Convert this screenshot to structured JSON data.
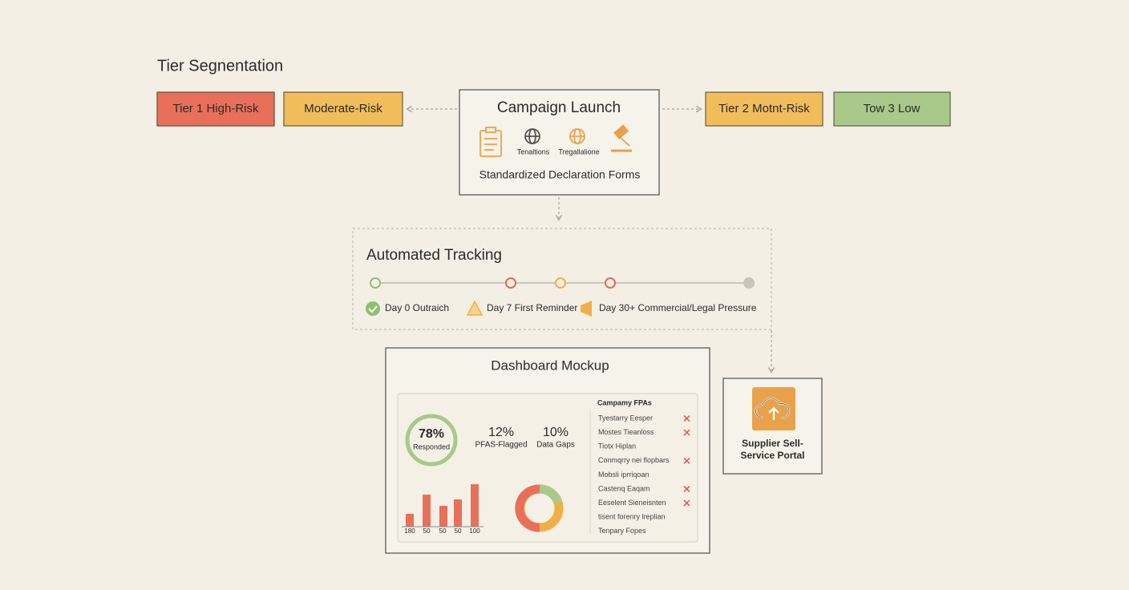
{
  "title": "Tier Segnentation",
  "tiers": [
    "Tier 1 High-Risk",
    "Moderate-Risk",
    "Tier 2 Motnt-Risk",
    "Tow 3 Low"
  ],
  "campaign": {
    "title": "Campaign Launch",
    "icons": [
      "Tenaltions",
      "Tregallalione"
    ],
    "caption": "Standardized Declaration Forms"
  },
  "tracking": {
    "title": "Automated Tracking",
    "steps": [
      "Day 0 Outraich",
      "Day 7 First Reminder",
      "Day 30+ Commercial/Legal Pressure"
    ]
  },
  "dashboard": {
    "title": "Dashboard Mockup",
    "metrics": [
      {
        "value": "78%",
        "label": "Responded"
      },
      {
        "value": "12%",
        "label": "PFAS-Flagged"
      },
      {
        "value": "10%",
        "label": "Data Gaps"
      }
    ],
    "bar_labels": [
      "180",
      "50",
      "50",
      "50",
      "100"
    ],
    "list_title": "Campamy FPAs",
    "list": [
      "Tyestarry Eesper",
      "Mostes Tieanloss",
      "Tiotx Hiplan",
      "Conmqrry nei flopbars",
      "Mobsli iprriqoan",
      "Castenq Eaqam",
      "Eeselent Sieneisnten",
      "tisent forenry lreplian",
      "Tenpary Fopes"
    ]
  },
  "portal": {
    "label": "Supplier Sell-Service Portal"
  }
}
